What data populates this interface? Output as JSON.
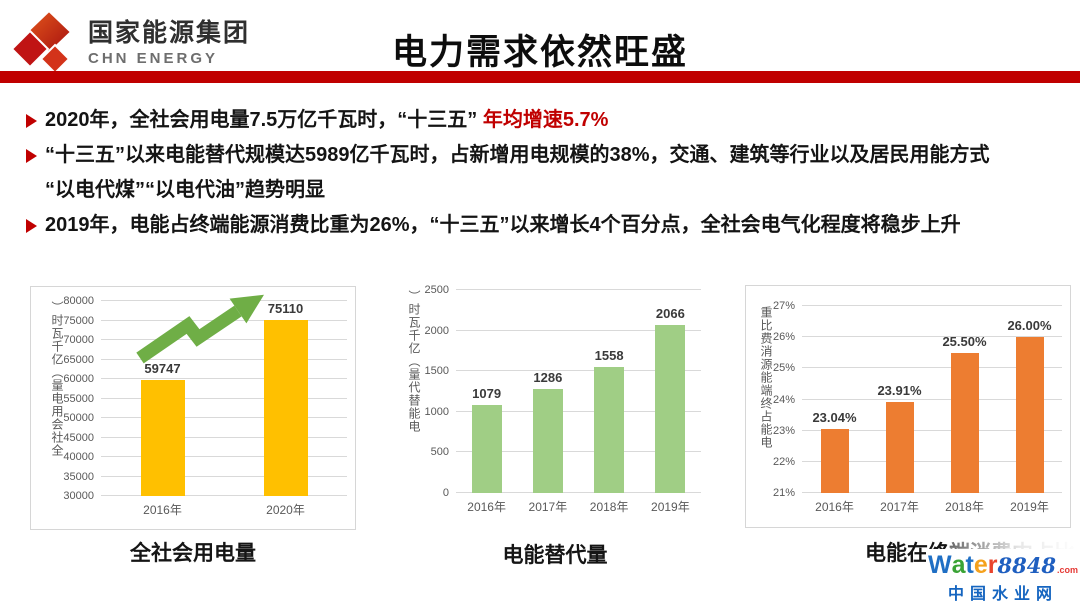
{
  "header": {
    "org_name_cn": "国家能源集团",
    "org_name_en": "CHN ENERGY",
    "title": "电力需求依然旺盛",
    "band_color": "#c00000"
  },
  "bullets": [
    {
      "marker": "➢",
      "segments": [
        {
          "text": "2020年，全社会用电量7.5万亿千瓦时，“十三五” ",
          "color": "#141414"
        },
        {
          "text": "年均增速5.7%",
          "color": "#c00000"
        }
      ]
    },
    {
      "marker": "➢",
      "segments": [
        {
          "text": "“十三五”以来电能替代规模达5989亿千瓦时，占新增用电规模的38%，交通、建筑等行业以及居民用能方式\n“以电代煤”“以电代油”趋势明显",
          "color": "#141414"
        }
      ]
    },
    {
      "marker": "➢",
      "segments": [
        {
          "text": "2019年，电能占终端能源消费比重为26%，“十三五”以来增长4个百分点，全社会电气化程度将稳步上升",
          "color": "#141414"
        }
      ]
    }
  ],
  "chart_data": [
    {
      "type": "bar",
      "title": "全社会用电量",
      "ylabel": "全社会用电量（亿千瓦时）",
      "categories": [
        "2016年",
        "2020年"
      ],
      "values": [
        59747,
        75110
      ],
      "bar_labels": [
        "59747",
        "75110"
      ],
      "ylim": [
        30000,
        80000
      ],
      "yticks": [
        "30000",
        "35000",
        "40000",
        "45000",
        "50000",
        "55000",
        "60000",
        "65000",
        "70000",
        "75000",
        "80000"
      ],
      "bar_color": "#FFC000",
      "grid": true,
      "legend": false,
      "annotation": "green-zigzag-growth-arrow",
      "annotation_color": "#6FAE46"
    },
    {
      "type": "bar",
      "title": "电能替代量",
      "ylabel": "电能替代量（亿千瓦时）",
      "categories": [
        "2016年",
        "2017年",
        "2018年",
        "2019年"
      ],
      "values": [
        1079,
        1286,
        1558,
        2066
      ],
      "bar_labels": [
        "1079",
        "1286",
        "1558",
        "2066"
      ],
      "ylim": [
        0,
        2500
      ],
      "yticks": [
        "0",
        "500",
        "1000",
        "1500",
        "2000",
        "2500"
      ],
      "bar_color": "#A0CE85",
      "grid": true,
      "legend": false
    },
    {
      "type": "bar",
      "title": "电能在终端消费中占比上升",
      "ylabel": "电能占终端能源消费比重",
      "categories": [
        "2016年",
        "2017年",
        "2018年",
        "2019年"
      ],
      "values": [
        23.04,
        23.91,
        25.5,
        26.0
      ],
      "bar_labels": [
        "23.04%",
        "23.91%",
        "25.50%",
        "26.00%"
      ],
      "ylim": [
        21,
        27
      ],
      "yticks": [
        "21%",
        "22%",
        "23%",
        "24%",
        "25%",
        "26%",
        "27%"
      ],
      "bar_color": "#ED7D31",
      "grid": true,
      "legend": false
    }
  ],
  "watermark": {
    "brand_letters": [
      {
        "t": "W",
        "c": "#1f6fc4"
      },
      {
        "t": "a",
        "c": "#3aa335"
      },
      {
        "t": "t",
        "c": "#1f6fc4"
      },
      {
        "t": "e",
        "c": "#f5a11c"
      },
      {
        "t": "r",
        "c": "#e8442d"
      }
    ],
    "number": "8848",
    "number_color": "#1f5fc0",
    "tld": ".com",
    "tld_color": "#e53935",
    "subtitle": "中国水业网",
    "subtitle_color": "#1565c0"
  }
}
